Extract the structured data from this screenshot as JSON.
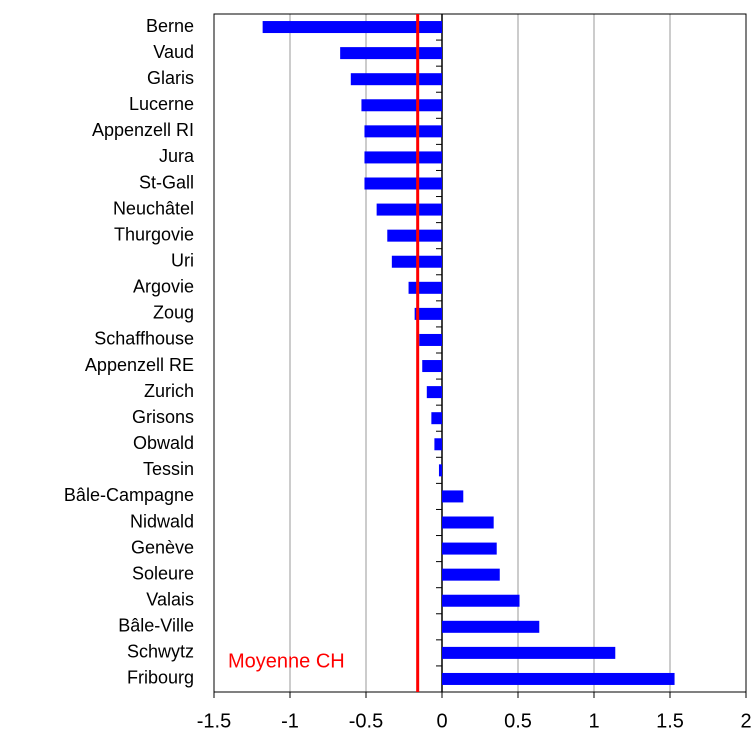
{
  "chart_data": {
    "type": "barh",
    "categories": [
      "Berne",
      "Vaud",
      "Glaris",
      "Lucerne",
      "Appenzell RI",
      "Jura",
      "St-Gall",
      "Neuchâtel",
      "Thurgovie",
      "Uri",
      "Argovie",
      "Zoug",
      "Schaffhouse",
      "Appenzell RE",
      "Zurich",
      "Grisons",
      "Obwald",
      "Tessin",
      "Bâle-Campagne",
      "Nidwald",
      "Genève",
      "Soleure",
      "Valais",
      "Bâle-Ville",
      "Schwytz",
      "Fribourg"
    ],
    "values": [
      -1.18,
      -0.67,
      -0.6,
      -0.53,
      -0.51,
      -0.51,
      -0.51,
      -0.43,
      -0.36,
      -0.33,
      -0.22,
      -0.18,
      -0.15,
      -0.13,
      -0.1,
      -0.07,
      -0.05,
      -0.02,
      0.14,
      0.34,
      0.36,
      0.38,
      0.51,
      0.64,
      1.14,
      1.53
    ],
    "color": "#0000ff",
    "xlim": [
      -1.5,
      2
    ],
    "xticks": [
      -1.5,
      -1,
      -0.5,
      0,
      0.5,
      1,
      1.5,
      2
    ],
    "grid": true,
    "reference_line": {
      "value": -0.16,
      "label": "Moyenne CH",
      "color": "#ff0000"
    }
  }
}
